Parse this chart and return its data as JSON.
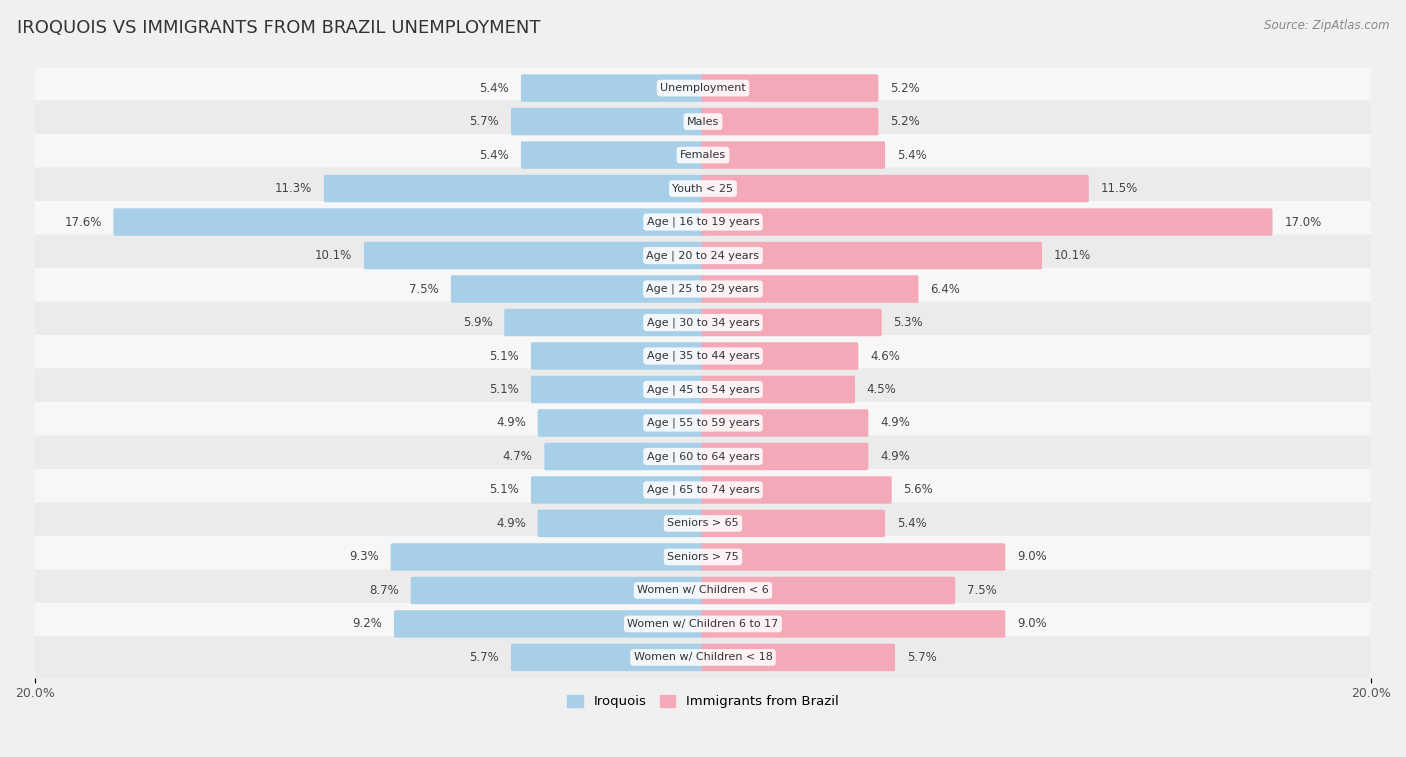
{
  "title": "IROQUOIS VS IMMIGRANTS FROM BRAZIL UNEMPLOYMENT",
  "source": "Source: ZipAtlas.com",
  "categories": [
    "Unemployment",
    "Males",
    "Females",
    "Youth < 25",
    "Age | 16 to 19 years",
    "Age | 20 to 24 years",
    "Age | 25 to 29 years",
    "Age | 30 to 34 years",
    "Age | 35 to 44 years",
    "Age | 45 to 54 years",
    "Age | 55 to 59 years",
    "Age | 60 to 64 years",
    "Age | 65 to 74 years",
    "Seniors > 65",
    "Seniors > 75",
    "Women w/ Children < 6",
    "Women w/ Children 6 to 17",
    "Women w/ Children < 18"
  ],
  "iroquois": [
    5.4,
    5.7,
    5.4,
    11.3,
    17.6,
    10.1,
    7.5,
    5.9,
    5.1,
    5.1,
    4.9,
    4.7,
    5.1,
    4.9,
    9.3,
    8.7,
    9.2,
    5.7
  ],
  "brazil": [
    5.2,
    5.2,
    5.4,
    11.5,
    17.0,
    10.1,
    6.4,
    5.3,
    4.6,
    4.5,
    4.9,
    4.9,
    5.6,
    5.4,
    9.0,
    7.5,
    9.0,
    5.7
  ],
  "iroquois_color": "#a8cfe8",
  "brazil_color": "#f4a9b8",
  "row_color_odd": "#ebebeb",
  "row_color_even": "#f7f7f7",
  "background_color": "#f0f0f0",
  "xlim": 20.0,
  "legend_iroquois": "Iroquois",
  "legend_brazil": "Immigrants from Brazil"
}
